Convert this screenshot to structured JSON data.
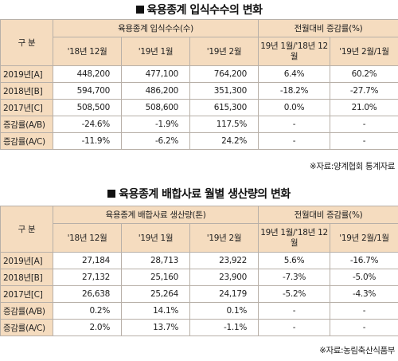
{
  "table1": {
    "title": "육용종계 입식수수의 변화",
    "row_header": "구 분",
    "group1": "육용종계 입식수수(수)",
    "group2": "전월대비 증감률(%)",
    "cols": [
      "'18년 12월",
      "'19년 1월",
      "'19년 2월",
      "19년 1월/'18년 12월",
      "'19년 2월/1월"
    ],
    "rows": [
      {
        "label": "2019년[A]",
        "values": [
          "448,200",
          "477,100",
          "764,200",
          "6.4%",
          "60.2%"
        ]
      },
      {
        "label": "2018년[B]",
        "values": [
          "594,700",
          "486,200",
          "351,300",
          "-18.2%",
          "-27.7%"
        ]
      },
      {
        "label": "2017년[C]",
        "values": [
          "508,500",
          "508,600",
          "615,300",
          "0.0%",
          "21.0%"
        ]
      },
      {
        "label": "증감률(A/B)",
        "values": [
          "-24.6%",
          "-1.9%",
          "117.5%",
          "-",
          "-"
        ]
      },
      {
        "label": "증감률(A/C)",
        "values": [
          "-11.9%",
          "-6.2%",
          "24.2%",
          "-",
          "-"
        ]
      }
    ],
    "source": "※자료:양계협회 통계자료"
  },
  "table2": {
    "title": "육용종계 배합사료 월별 생산량의 변화",
    "row_header": "구 분",
    "group1": "육용종계 배합사료 생산량(톤)",
    "group2": "전월대비 증감률(%)",
    "cols": [
      "'18년 12월",
      "'19년 1월",
      "'19년 2월",
      "19년 1월/'18년 12월",
      "'19년 2월/1월"
    ],
    "rows": [
      {
        "label": "2019년[A]",
        "values": [
          "27,184",
          "28,713",
          "23,922",
          "5.6%",
          "-16.7%"
        ]
      },
      {
        "label": "2018년[B]",
        "values": [
          "27,132",
          "25,160",
          "23,900",
          "-7.3%",
          "-5.0%"
        ]
      },
      {
        "label": "2017년[C]",
        "values": [
          "26,638",
          "25,264",
          "24,179",
          "-5.2%",
          "-4.3%"
        ]
      },
      {
        "label": "증감률(A/B)",
        "values": [
          "0.2%",
          "14.1%",
          "0.1%",
          "-",
          "-"
        ]
      },
      {
        "label": "증감률(A/C)",
        "values": [
          "2.0%",
          "13.7%",
          "-1.1%",
          "-",
          "-"
        ]
      }
    ],
    "source": "※자료:농림축산식품부"
  }
}
